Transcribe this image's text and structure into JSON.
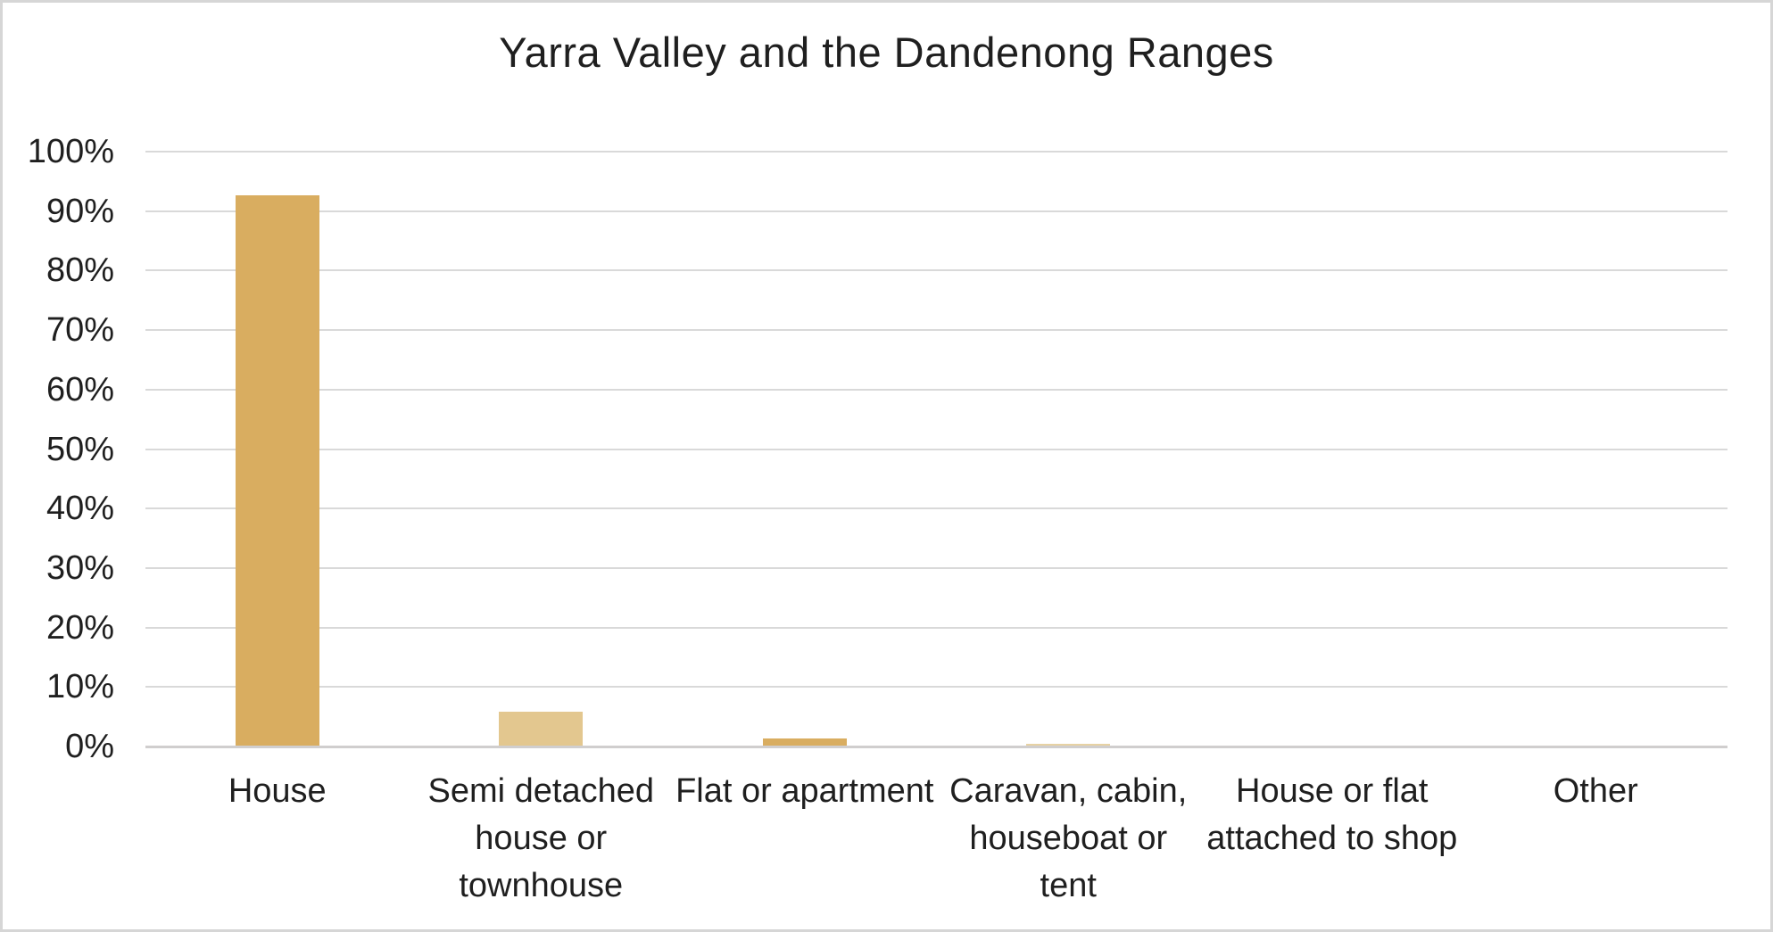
{
  "chart_data": {
    "type": "bar",
    "title": "Yarra Valley and the Dandenong Ranges",
    "categories": [
      "House",
      "Semi detached house or townhouse",
      "Flat or apartment",
      "Caravan, cabin, houseboat or tent",
      "House or flat attached to shop",
      "Other"
    ],
    "xtick_lines": [
      [
        "House"
      ],
      [
        "Semi detached",
        "house or",
        "townhouse"
      ],
      [
        "Flat or apartment"
      ],
      [
        "Caravan, cabin,",
        "houseboat or",
        "tent"
      ],
      [
        "House or flat",
        "attached to shop"
      ],
      [
        "Other"
      ]
    ],
    "values": [
      92.6,
      5.9,
      1.3,
      0.5,
      0,
      0
    ],
    "unit": "%",
    "ylim": [
      0,
      100
    ],
    "yticks": [
      {
        "value": 0,
        "label": "0%"
      },
      {
        "value": 10,
        "label": "10%"
      },
      {
        "value": 20,
        "label": "20%"
      },
      {
        "value": 30,
        "label": "30%"
      },
      {
        "value": 40,
        "label": "40%"
      },
      {
        "value": 50,
        "label": "50%"
      },
      {
        "value": 60,
        "label": "60%"
      },
      {
        "value": 70,
        "label": "70%"
      },
      {
        "value": 80,
        "label": "80%"
      },
      {
        "value": 90,
        "label": "90%"
      },
      {
        "value": 100,
        "label": "100%"
      }
    ],
    "bar_colors": [
      "#D9AD60",
      "#E3C78F",
      "#D9AD60",
      "#E7D2A3",
      "#D9AD60",
      "#D9AD60"
    ],
    "gridline_color": "#D9D9D9",
    "axis_line_color": "#D0CECE",
    "text_color": "#1F1F1F",
    "grid": "horizontal",
    "legend": "none"
  }
}
